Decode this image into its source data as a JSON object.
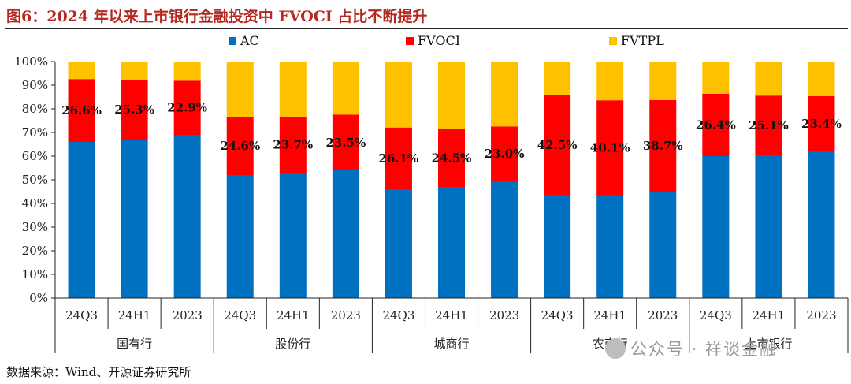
{
  "title": "图6：2024 年以来上市银行金融投资中 FVOCI 占比不断提升",
  "source": "数据来源：Wind、开源证券研究所",
  "watermark": "公众号 · 祥谈金融",
  "chart_data": {
    "type": "bar",
    "stacked": true,
    "grid": false,
    "legend_position": "top",
    "ylim": [
      0,
      100
    ],
    "y_ticks": [
      "0%",
      "10%",
      "20%",
      "30%",
      "40%",
      "50%",
      "60%",
      "70%",
      "80%",
      "90%",
      "100%"
    ],
    "groups": [
      {
        "name": "国有行",
        "categories": [
          "24Q3",
          "24H1",
          "2023"
        ]
      },
      {
        "name": "股份行",
        "categories": [
          "24Q3",
          "24H1",
          "2023"
        ]
      },
      {
        "name": "城商行",
        "categories": [
          "24Q3",
          "24H1",
          "2023"
        ]
      },
      {
        "name": "农商行",
        "categories": [
          "24Q3",
          "24H1",
          "2023"
        ]
      },
      {
        "name": "上市银行",
        "categories": [
          "24Q3",
          "24H1",
          "2023"
        ]
      }
    ],
    "series": [
      {
        "name": "AC",
        "color": "#0070c0",
        "values": [
          66.0,
          67.0,
          69.0,
          52.0,
          53.0,
          54.0,
          46.0,
          47.0,
          49.5,
          43.5,
          43.5,
          45.0,
          60.0,
          60.5,
          62.0
        ]
      },
      {
        "name": "FVOCI",
        "color": "#ff0000",
        "values": [
          26.6,
          25.3,
          22.9,
          24.6,
          23.7,
          23.5,
          26.1,
          24.5,
          23.0,
          42.5,
          40.1,
          38.7,
          26.4,
          25.1,
          23.4
        ]
      },
      {
        "name": "FVTPL",
        "color": "#ffc000",
        "values": [
          7.4,
          7.7,
          8.1,
          23.4,
          23.3,
          22.5,
          27.9,
          28.5,
          27.5,
          14.0,
          16.4,
          16.3,
          13.6,
          14.4,
          14.6
        ]
      }
    ],
    "data_labels": [
      "26.6%",
      "25.3%",
      "22.9%",
      "24.6%",
      "23.7%",
      "23.5%",
      "26.1%",
      "24.5%",
      "23.0%",
      "42.5%",
      "40.1%",
      "38.7%",
      "26.4%",
      "25.1%",
      "23.4%"
    ]
  }
}
